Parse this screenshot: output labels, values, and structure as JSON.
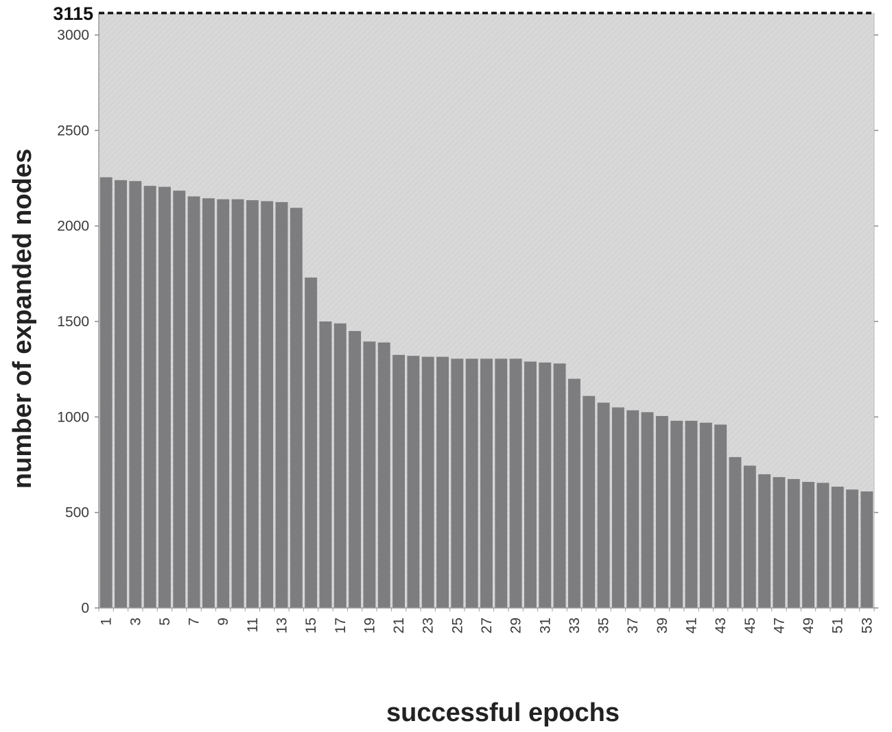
{
  "chart_data": {
    "type": "bar",
    "title": "",
    "xlabel": "successful epochs",
    "ylabel": "number of expanded nodes",
    "ylim": [
      0,
      3115
    ],
    "yticks": [
      0,
      500,
      1000,
      1500,
      2000,
      2500,
      3000
    ],
    "x_tick_labels": [
      "1",
      "3",
      "5",
      "7",
      "9",
      "11",
      "13",
      "15",
      "17",
      "19",
      "21",
      "23",
      "25",
      "27",
      "29",
      "31",
      "33",
      "35",
      "37",
      "39",
      "41",
      "43",
      "45",
      "47",
      "49",
      "51",
      "53"
    ],
    "categories": [
      1,
      2,
      3,
      4,
      5,
      6,
      7,
      8,
      9,
      10,
      11,
      12,
      13,
      14,
      15,
      16,
      17,
      18,
      19,
      20,
      21,
      22,
      23,
      24,
      25,
      26,
      27,
      28,
      29,
      30,
      31,
      32,
      33,
      34,
      35,
      36,
      37,
      38,
      39,
      40,
      41,
      42,
      43,
      44,
      45,
      46,
      47,
      48,
      49,
      50,
      51,
      52,
      53
    ],
    "values": [
      2255,
      2240,
      2235,
      2210,
      2205,
      2185,
      2155,
      2145,
      2140,
      2140,
      2135,
      2130,
      2125,
      2095,
      1730,
      1500,
      1490,
      1450,
      1395,
      1390,
      1325,
      1320,
      1315,
      1315,
      1305,
      1305,
      1305,
      1305,
      1305,
      1290,
      1285,
      1280,
      1200,
      1110,
      1075,
      1050,
      1035,
      1025,
      1005,
      980,
      980,
      970,
      960,
      790,
      745,
      700,
      685,
      675,
      660,
      655,
      635,
      620,
      610
    ],
    "reference_line": {
      "value": 3115,
      "label": "3115",
      "style": "dashed"
    },
    "grid": false,
    "legend": "none",
    "colors": {
      "bar": "#7d7d80",
      "plot_background": "#d9d9d9",
      "reference_line": "#111111"
    }
  }
}
